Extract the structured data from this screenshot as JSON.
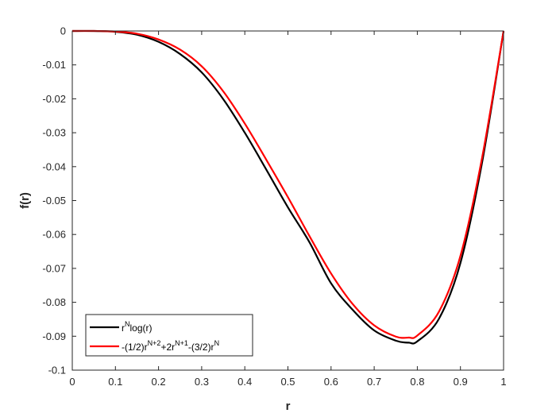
{
  "chart_data": {
    "type": "line",
    "title": "",
    "xlabel": "r",
    "ylabel": "f(r)",
    "xlim": [
      0,
      1
    ],
    "ylim": [
      -0.1,
      0
    ],
    "xticks": [
      0,
      0.1,
      0.2,
      0.3,
      0.4,
      0.5,
      0.6,
      0.7,
      0.8,
      0.9,
      1
    ],
    "xtick_labels": [
      "0",
      "0.1",
      "0.2",
      "0.3",
      "0.4",
      "0.5",
      "0.6",
      "0.7",
      "0.8",
      "0.9",
      "1"
    ],
    "yticks": [
      0,
      -0.01,
      -0.02,
      -0.03,
      -0.04,
      -0.05,
      -0.06,
      -0.07,
      -0.08,
      -0.09,
      -0.1
    ],
    "ytick_labels": [
      "0",
      "-0.01",
      "-0.02",
      "-0.03",
      "-0.04",
      "-0.05",
      "-0.06",
      "-0.07",
      "-0.08",
      "-0.09",
      "-0.1"
    ],
    "grid": false,
    "legend_position": "bottom-left",
    "x": [
      0,
      0.05,
      0.1,
      0.15,
      0.2,
      0.25,
      0.3,
      0.35,
      0.4,
      0.45,
      0.5,
      0.55,
      0.6,
      0.65,
      0.7,
      0.75,
      0.78,
      0.8,
      0.85,
      0.9,
      0.95,
      1
    ],
    "series": [
      {
        "color": "#000000",
        "legend_parts": [
          {
            "t": "r"
          },
          {
            "t": "N",
            "sup": true
          },
          {
            "t": "log(r)"
          }
        ],
        "values": [
          0,
          -7.5e-06,
          -0.00023,
          -0.0011,
          -0.0032,
          -0.0068,
          -0.0122,
          -0.0201,
          -0.03,
          -0.0409,
          -0.052,
          -0.0623,
          -0.0744,
          -0.0822,
          -0.0883,
          -0.0913,
          -0.0919,
          -0.0915,
          -0.0849,
          -0.0684,
          -0.0389,
          0
        ]
      },
      {
        "color": "#ff0000",
        "legend_parts": [
          {
            "t": "-(1/2)r"
          },
          {
            "t": "N+2",
            "sup": true
          },
          {
            "t": "+2r"
          },
          {
            "t": "N+1",
            "sup": true
          },
          {
            "t": "-(3/2)r"
          },
          {
            "t": "N",
            "sup": true
          }
        ],
        "values": [
          0,
          -5e-06,
          -0.00016,
          -0.0008,
          -0.0025,
          -0.0055,
          -0.0104,
          -0.0178,
          -0.0273,
          -0.038,
          -0.049,
          -0.0605,
          -0.0715,
          -0.0805,
          -0.0868,
          -0.0901,
          -0.0904,
          -0.0898,
          -0.0828,
          -0.0663,
          -0.0375,
          0
        ]
      }
    ]
  }
}
